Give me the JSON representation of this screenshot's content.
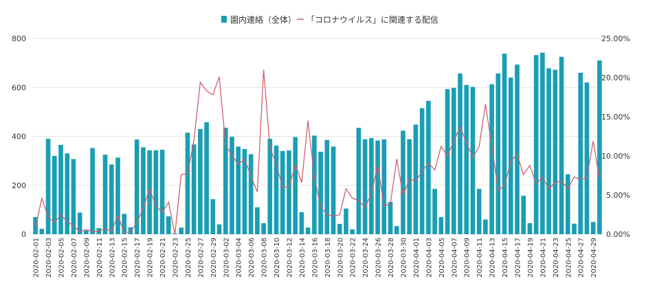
{
  "chart_data": {
    "type": "bar",
    "title": "",
    "xlabel": "",
    "ylabel": "",
    "ylim": [
      0,
      800
    ],
    "y2lim": [
      0,
      25
    ],
    "y_ticks": [
      "0",
      "200",
      "400",
      "600",
      "800"
    ],
    "y2_ticks": [
      "0.00%",
      "5.00%",
      "10.00%",
      "15.00%",
      "20.00%",
      "25.00%"
    ],
    "grid": true,
    "legend_position": "top-center",
    "colors": {
      "bar": "#1a9eb3",
      "line": "#cf5e6f",
      "grid": "#e3e3e3"
    },
    "categories": [
      "2020-02-01",
      "2020-02-02",
      "2020-02-03",
      "2020-02-04",
      "2020-02-05",
      "2020-02-06",
      "2020-02-07",
      "2020-02-08",
      "2020-02-09",
      "2020-02-10",
      "2020-02-11",
      "2020-02-12",
      "2020-02-13",
      "2020-02-14",
      "2020-02-15",
      "2020-02-16",
      "2020-02-17",
      "2020-02-18",
      "2020-02-19",
      "2020-02-20",
      "2020-02-21",
      "2020-02-22",
      "2020-02-23",
      "2020-02-24",
      "2020-02-25",
      "2020-02-26",
      "2020-02-27",
      "2020-02-28",
      "2020-02-29",
      "2020-03-01",
      "2020-03-02",
      "2020-03-03",
      "2020-03-04",
      "2020-03-05",
      "2020-03-06",
      "2020-03-07",
      "2020-03-08",
      "2020-03-09",
      "2020-03-10",
      "2020-03-11",
      "2020-03-12",
      "2020-03-13",
      "2020-03-14",
      "2020-03-15",
      "2020-03-16",
      "2020-03-17",
      "2020-03-18",
      "2020-03-19",
      "2020-03-20",
      "2020-03-21",
      "2020-03-22",
      "2020-03-23",
      "2020-03-24",
      "2020-03-25",
      "2020-03-26",
      "2020-03-27",
      "2020-03-28",
      "2020-03-29",
      "2020-03-30",
      "2020-03-31",
      "2020-04-01",
      "2020-04-02",
      "2020-04-03",
      "2020-04-04",
      "2020-04-05",
      "2020-04-06",
      "2020-04-07",
      "2020-04-08",
      "2020-04-09",
      "2020-04-10",
      "2020-04-11",
      "2020-04-12",
      "2020-04-13",
      "2020-04-14",
      "2020-04-15",
      "2020-04-16",
      "2020-04-17",
      "2020-04-18",
      "2020-04-19",
      "2020-04-20",
      "2020-04-21",
      "2020-04-22",
      "2020-04-23",
      "2020-04-24",
      "2020-04-25",
      "2020-04-26",
      "2020-04-27",
      "2020-04-28",
      "2020-04-29",
      "2020-04-30"
    ],
    "x_tick_labels": [
      "2020-02-01",
      "2020-02-03",
      "2020-02-05",
      "2020-02-07",
      "2020-02-09",
      "2020-02-11",
      "2020-02-13",
      "2020-02-15",
      "2020-02-17",
      "2020-02-19",
      "2020-02-21",
      "2020-02-23",
      "2020-02-25",
      "2020-02-27",
      "2020-02-29",
      "2020-03-02",
      "2020-03-04",
      "2020-03-06",
      "2020-03-08",
      "2020-03-10",
      "2020-03-12",
      "2020-03-14",
      "2020-03-16",
      "2020-03-18",
      "2020-03-20",
      "2020-03-22",
      "2020-03-24",
      "2020-03-26",
      "2020-03-28",
      "2020-03-30",
      "2020-04-01",
      "2020-04-03",
      "2020-04-05",
      "2020-04-07",
      "2020-04-09",
      "2020-04-11",
      "2020-04-13",
      "2020-04-15",
      "2020-04-17",
      "2020-04-19",
      "2020-04-21",
      "2020-04-23",
      "2020-04-25",
      "2020-04-27",
      "2020-04-29"
    ],
    "series": [
      {
        "name": "園内連絡（全体）",
        "type": "bar",
        "axis": "left",
        "values": [
          70,
          22,
          390,
          320,
          365,
          330,
          307,
          88,
          15,
          352,
          25,
          325,
          285,
          313,
          83,
          28,
          387,
          355,
          343,
          343,
          345,
          73,
          3,
          27,
          415,
          367,
          430,
          458,
          143,
          40,
          435,
          398,
          358,
          348,
          327,
          110,
          45,
          390,
          362,
          340,
          342,
          397,
          90,
          27,
          403,
          337,
          385,
          358,
          42,
          105,
          20,
          435,
          388,
          393,
          383,
          388,
          132,
          33,
          423,
          388,
          448,
          515,
          545,
          185,
          70,
          593,
          598,
          657,
          610,
          602,
          185,
          60,
          613,
          657,
          738,
          640,
          693,
          157,
          45,
          732,
          742,
          678,
          672,
          725,
          245,
          43,
          660,
          620,
          50,
          710
        ]
      },
      {
        "name": "「コロナウイルス」に関連する配信",
        "type": "line",
        "axis": "right",
        "values": [
          0.8,
          4.6,
          2.2,
          1.5,
          2.5,
          1.6,
          1.1,
          0.3,
          0.6,
          0.3,
          0.4,
          0.7,
          0.4,
          2.4,
          0.2,
          0.3,
          1.5,
          3.3,
          5.8,
          3.6,
          2.8,
          4.1,
          0.0,
          7.6,
          7.7,
          12.0,
          19.4,
          18.3,
          17.8,
          20.1,
          11.4,
          10.1,
          8.9,
          9.6,
          7.4,
          5.4,
          21.0,
          11.1,
          8.9,
          6.0,
          6.0,
          8.9,
          6.6,
          14.5,
          7.3,
          3.5,
          2.5,
          2.3,
          2.5,
          5.8,
          4.6,
          4.3,
          3.4,
          5.2,
          8.8,
          3.6,
          3.9,
          9.6,
          5.0,
          7.0,
          6.8,
          8.0,
          9.1,
          8.2,
          11.2,
          10.0,
          11.9,
          13.7,
          11.7,
          9.8,
          11.2,
          16.6,
          11.3,
          5.6,
          6.2,
          9.3,
          10.2,
          7.6,
          8.8,
          6.4,
          7.3,
          5.8,
          6.6,
          6.8,
          5.8,
          7.3,
          7.0,
          7.2,
          11.9,
          7.0
        ]
      }
    ]
  }
}
